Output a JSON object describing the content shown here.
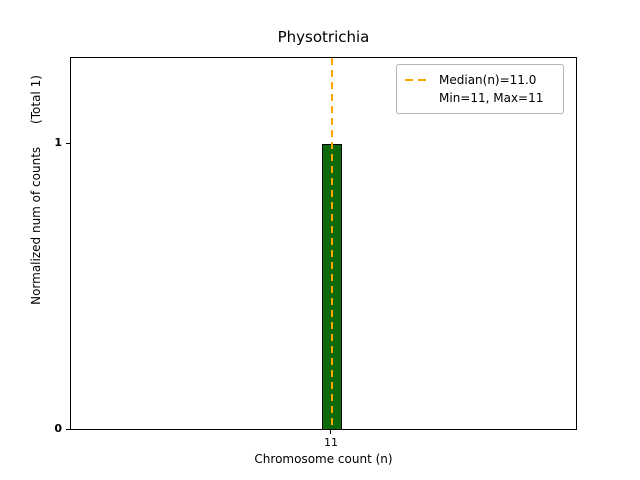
{
  "title": "Physotrichia",
  "axes": {
    "xlabel": "Chromosome count (n)",
    "ylabel": "Normalized num of counts      (Total 1)",
    "xticks": [
      "11"
    ],
    "yticks": [
      "0",
      "1"
    ]
  },
  "legend": {
    "median_label": "Median(n)=11.0",
    "minmax_label": "Min=11, Max=11"
  },
  "colors": {
    "bar_fill": "#0c6a0c",
    "bar_edge": "#000000",
    "median_line": "#ffa500",
    "legend_border": "#b4b4b4"
  },
  "chart_data": {
    "type": "bar",
    "categories": [
      11
    ],
    "values": [
      1
    ],
    "title": "Physotrichia",
    "xlabel": "Chromosome count (n)",
    "ylabel": "Normalized num of counts (Total 1)",
    "ylim": [
      0,
      1.3
    ],
    "yticks_labeled": [
      0,
      1
    ],
    "total_counts": 1,
    "median_n": 11.0,
    "min_n": 11,
    "max_n": 11,
    "median_line": {
      "x": 11,
      "style": "dashed",
      "color": "#ffa500"
    },
    "legend_entries": [
      "Median(n)=11.0",
      "Min=11, Max=11"
    ],
    "legend_position": "upper right",
    "grid": false
  }
}
